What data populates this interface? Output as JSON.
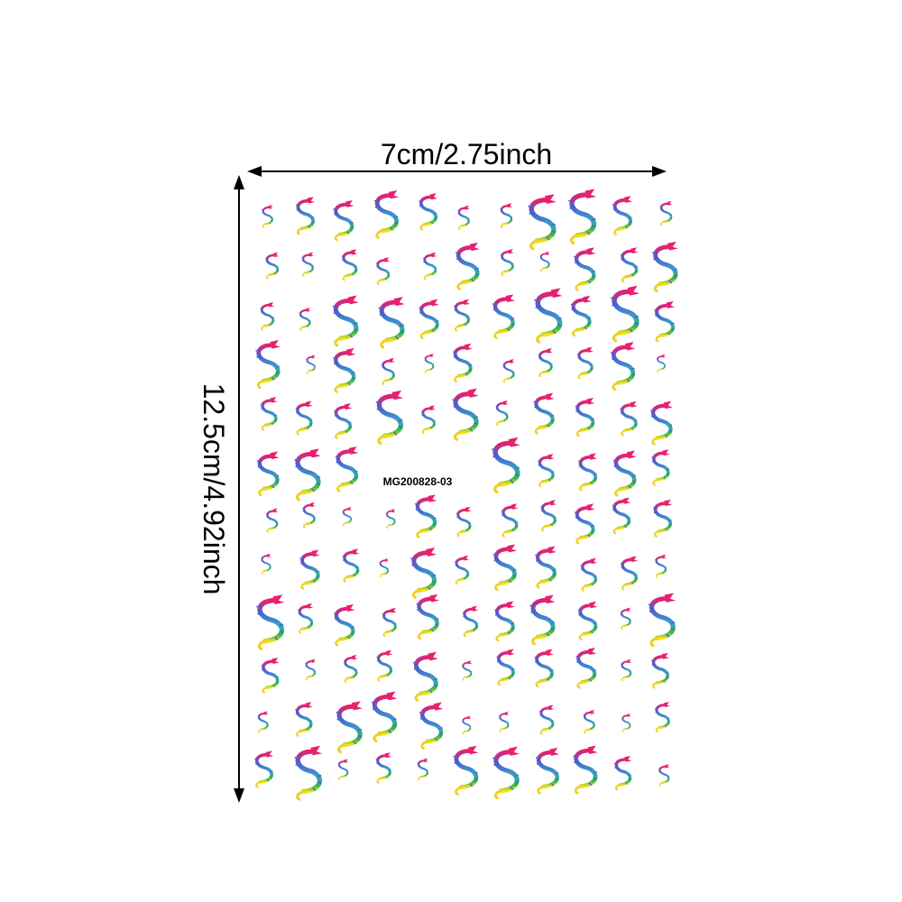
{
  "width_label": "7cm/2.75inch",
  "height_label": "12.5cm/4.92inch",
  "product_code": "MG200828-03"
}
